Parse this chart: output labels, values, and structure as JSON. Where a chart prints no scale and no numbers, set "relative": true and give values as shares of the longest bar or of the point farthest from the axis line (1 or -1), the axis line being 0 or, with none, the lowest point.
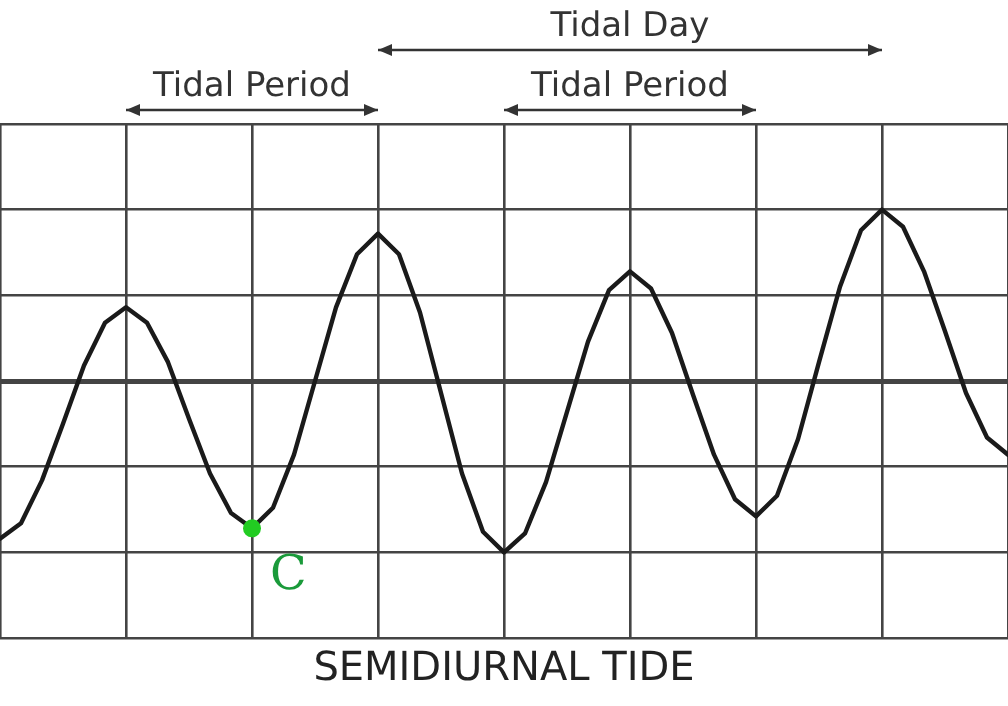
{
  "chart_data": {
    "type": "line",
    "title": "SEMIDIURNAL TIDE",
    "relative": true,
    "grid": true,
    "legend": false,
    "marker": "none",
    "line_style": "solid",
    "categories": [
      null,
      null,
      null,
      null,
      null,
      null,
      null,
      null,
      null,
      null,
      null,
      null,
      null,
      null,
      null,
      null,
      null,
      null,
      null,
      null,
      null,
      null,
      null,
      null,
      null,
      null,
      null,
      null,
      null,
      null,
      null,
      null,
      null,
      null,
      null,
      null,
      null,
      null,
      null,
      null,
      null,
      null,
      null,
      null,
      null,
      null,
      null,
      null,
      null
    ],
    "series": [
      {
        "color": "#1a1a1a",
        "values": [
          -0.92,
          -0.83,
          -0.58,
          -0.25,
          0.09,
          0.34,
          0.43,
          0.34,
          0.11,
          -0.22,
          -0.54,
          -0.77,
          -0.86,
          -0.74,
          -0.43,
          0,
          0.43,
          0.74,
          0.86,
          0.74,
          0.4,
          -0.07,
          -0.54,
          -0.88,
          -1,
          -0.89,
          -0.59,
          -0.18,
          0.23,
          0.53,
          0.64,
          0.54,
          0.28,
          -0.08,
          -0.43,
          -0.69,
          -0.79,
          -0.67,
          -0.34,
          0.11,
          0.55,
          0.88,
          1,
          0.9,
          0.64,
          0.29,
          -0.07,
          -0.33,
          -0.43
        ]
      }
    ],
    "annotations": [
      "Tidal Period",
      "Tidal Day",
      "Tidal Period",
      "C"
    ]
  }
}
